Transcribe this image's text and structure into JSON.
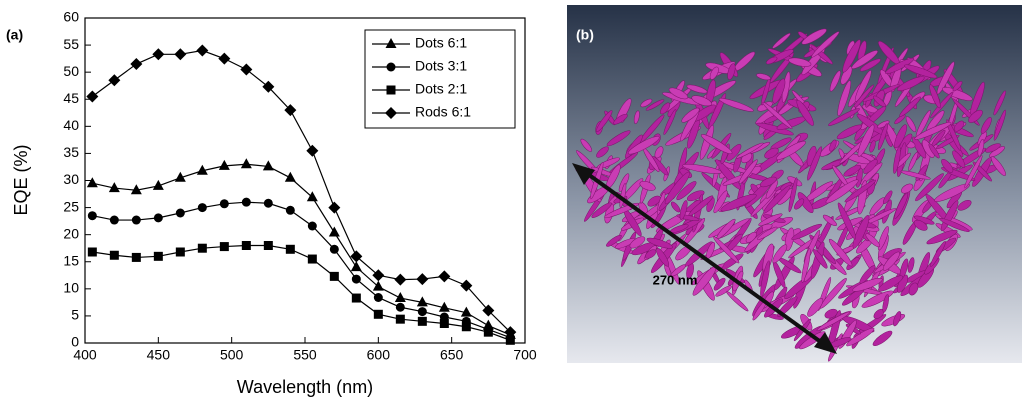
{
  "chart_data": {
    "type": "line",
    "panel_label": "(a)",
    "xlabel": "Wavelength (nm)",
    "ylabel": "EQE (%)",
    "x": [
      405,
      420,
      435,
      450,
      465,
      480,
      495,
      510,
      525,
      540,
      555,
      570,
      585,
      600,
      615,
      630,
      645,
      660,
      675,
      690
    ],
    "xlim": [
      400,
      700
    ],
    "xticks": [
      400,
      450,
      500,
      550,
      600,
      650,
      700
    ],
    "ylim": [
      0,
      60
    ],
    "yticks": [
      0,
      5,
      10,
      15,
      20,
      25,
      30,
      35,
      40,
      45,
      50,
      55,
      60
    ],
    "legend": "upper right",
    "series": [
      {
        "name": "Dots 6:1",
        "color": "#000000",
        "marker": "triangle",
        "values": [
          29.5,
          28.6,
          28.2,
          29,
          30.5,
          31.8,
          32.7,
          33,
          32.6,
          30.5,
          26.9,
          20.4,
          14,
          10.4,
          8.3,
          7.5,
          6.5,
          5.6,
          3.2,
          1.5
        ]
      },
      {
        "name": "Dots 3:1",
        "color": "#000000",
        "marker": "circle",
        "values": [
          23.5,
          22.7,
          22.7,
          23.1,
          24,
          25,
          25.7,
          26,
          25.8,
          24.5,
          21.6,
          17.3,
          11.8,
          8.4,
          6.6,
          5.8,
          4.8,
          4,
          2.5,
          1
        ]
      },
      {
        "name": "Dots 2:1",
        "color": "#000000",
        "marker": "square",
        "values": [
          16.8,
          16.2,
          15.8,
          16,
          16.8,
          17.5,
          17.8,
          18,
          18,
          17.3,
          15.5,
          12.3,
          8.3,
          5.3,
          4.4,
          4,
          3.6,
          3,
          2,
          0.5
        ]
      },
      {
        "name": "Rods 6:1",
        "color": "#000000",
        "marker": "diamond",
        "values": [
          45.5,
          48.5,
          51.5,
          53.3,
          53.3,
          54,
          52.5,
          50.5,
          47.3,
          43,
          35.5,
          25,
          16,
          12.5,
          11.7,
          11.8,
          12.3,
          10.6,
          6,
          2
        ]
      }
    ]
  },
  "image": {
    "panel_label": "(b)",
    "scale_label": "270 nm"
  }
}
